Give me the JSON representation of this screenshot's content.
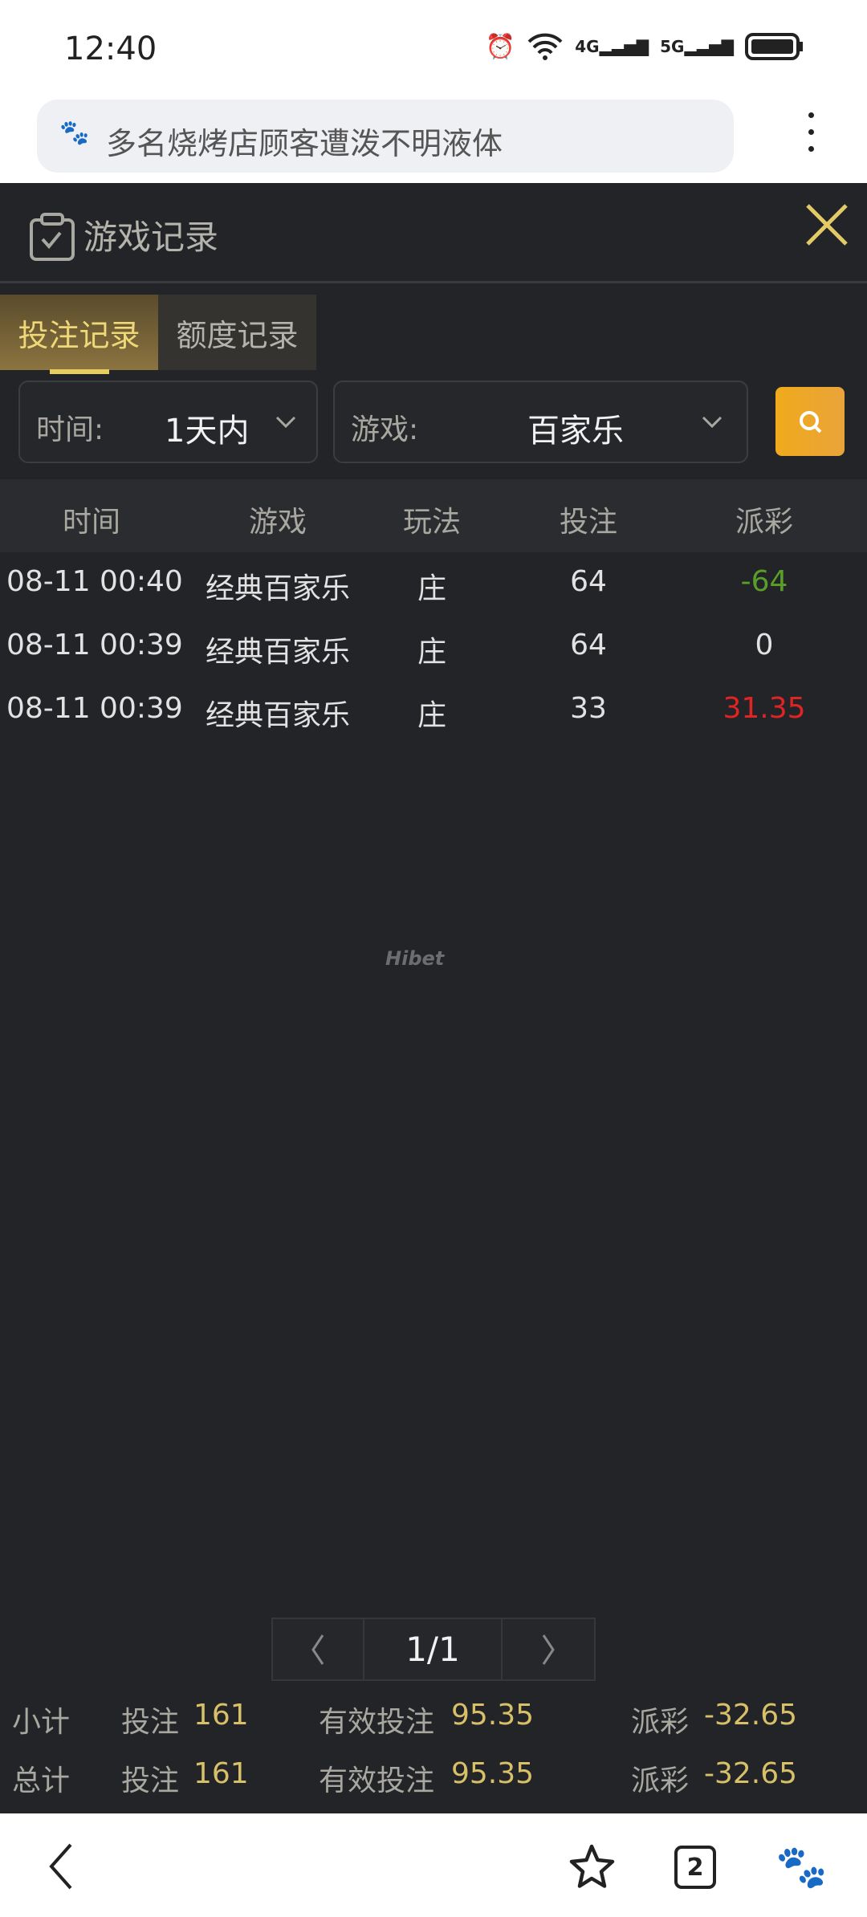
{
  "status_bar": {
    "time": "12:40",
    "icons": [
      "alarm-icon",
      "wifi-icon",
      "4g-signal-icon",
      "5g-signal-icon",
      "battery-icon"
    ],
    "net1": "4G",
    "net2": "5G"
  },
  "browser": {
    "url_text": "多名烧烤店顾客遭泼不明液体",
    "tab_count": "2"
  },
  "header": {
    "title": "游戏记录"
  },
  "tabs": [
    {
      "label": "投注记录",
      "active": true
    },
    {
      "label": "额度记录",
      "active": false
    }
  ],
  "filters": {
    "time_label": "时间:",
    "time_value": "1天内",
    "game_label": "游戏:",
    "game_value": "百家乐"
  },
  "table": {
    "columns": [
      "时间",
      "游戏",
      "玩法",
      "投注",
      "派彩"
    ],
    "rows": [
      {
        "time": "08-11 00:40",
        "game": "经典百家乐",
        "play": "庄",
        "bet": "64",
        "payout": "-64",
        "payout_color": "#5a9e2a"
      },
      {
        "time": "08-11 00:39",
        "game": "经典百家乐",
        "play": "庄",
        "bet": "64",
        "payout": "0",
        "payout_color": "#e2e2e2"
      },
      {
        "time": "08-11 00:39",
        "game": "经典百家乐",
        "play": "庄",
        "bet": "33",
        "payout": "31.35",
        "payout_color": "#e02424"
      }
    ]
  },
  "watermark": "Hibet",
  "pagination": {
    "page": "1/1"
  },
  "summary": [
    {
      "label": "小计",
      "bet_label": "投注",
      "bet": "161",
      "valid_label": "有效投注",
      "valid": "95.35",
      "payout_label": "派彩",
      "payout": "-32.65"
    },
    {
      "label": "总计",
      "bet_label": "投注",
      "bet": "161",
      "valid_label": "有效投注",
      "valid": "95.35",
      "payout_label": "派彩",
      "payout": "-32.65"
    }
  ],
  "colors": {
    "accent": "#e6cd62",
    "search_button": "#f0aa1c",
    "background": "#232428"
  }
}
